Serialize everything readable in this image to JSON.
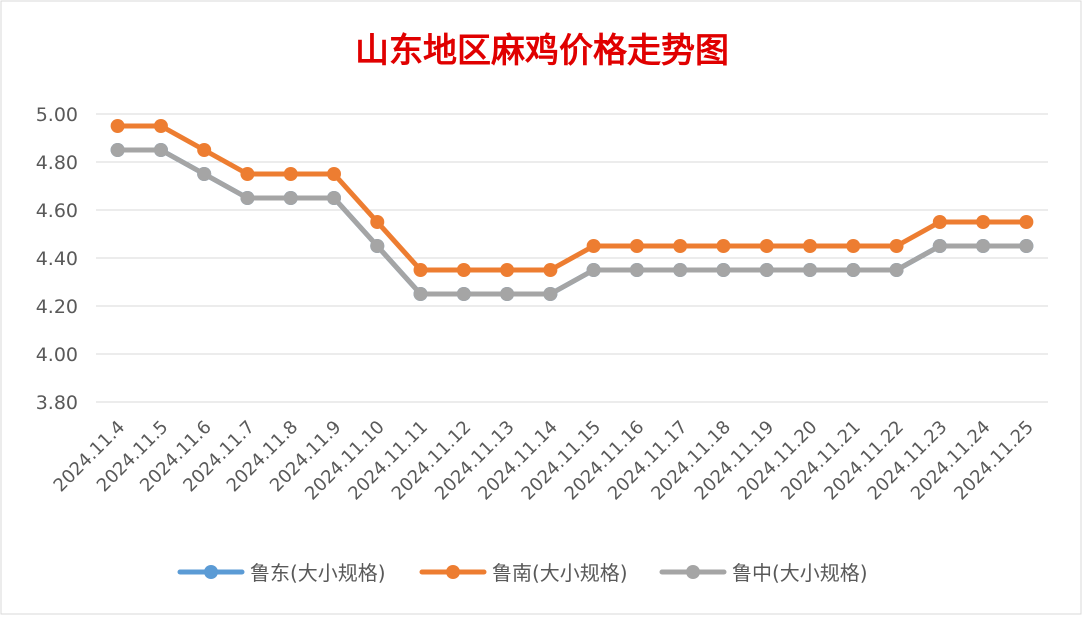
{
  "chart_data": {
    "type": "line",
    "title": "山东地区麻鸡价格走势图",
    "xlabel": "",
    "ylabel": "",
    "ylim": [
      3.8,
      5.0
    ],
    "yticks": [
      "3.80",
      "4.00",
      "4.20",
      "4.40",
      "4.60",
      "4.80",
      "5.00"
    ],
    "grid": true,
    "legend_position": "bottom",
    "categories": [
      "2024.11.4",
      "2024.11.5",
      "2024.11.6",
      "2024.11.7",
      "2024.11.8",
      "2024.11.9",
      "2024.11.10",
      "2024.11.11",
      "2024.11.12",
      "2024.11.13",
      "2024.11.14",
      "2024.11.15",
      "2024.11.16",
      "2024.11.17",
      "2024.11.18",
      "2024.11.19",
      "2024.11.20",
      "2024.11.21",
      "2024.11.22",
      "2024.11.23",
      "2024.11.24",
      "2024.11.25"
    ],
    "series": [
      {
        "name": "鲁东(大小规格)",
        "color": "#5B9BD5",
        "values": [
          4.85,
          4.85,
          4.75,
          4.65,
          4.65,
          4.65,
          4.45,
          4.25,
          4.25,
          4.25,
          4.25,
          4.35,
          4.35,
          4.35,
          4.35,
          4.35,
          4.35,
          4.35,
          4.35,
          4.45,
          4.45,
          4.45
        ]
      },
      {
        "name": "鲁南(大小规格)",
        "color": "#ED7D31",
        "values": [
          4.95,
          4.95,
          4.85,
          4.75,
          4.75,
          4.75,
          4.55,
          4.35,
          4.35,
          4.35,
          4.35,
          4.45,
          4.45,
          4.45,
          4.45,
          4.45,
          4.45,
          4.45,
          4.45,
          4.55,
          4.55,
          4.55
        ]
      },
      {
        "name": "鲁中(大小规格)",
        "color": "#A5A5A5",
        "values": [
          4.85,
          4.85,
          4.75,
          4.65,
          4.65,
          4.65,
          4.45,
          4.25,
          4.25,
          4.25,
          4.25,
          4.35,
          4.35,
          4.35,
          4.35,
          4.35,
          4.35,
          4.35,
          4.35,
          4.45,
          4.45,
          4.45
        ]
      }
    ],
    "colors": {
      "title": "#E00000",
      "grid": "#D9D9D9",
      "axis_text": "#595959",
      "border": "#D9D9D9"
    }
  }
}
